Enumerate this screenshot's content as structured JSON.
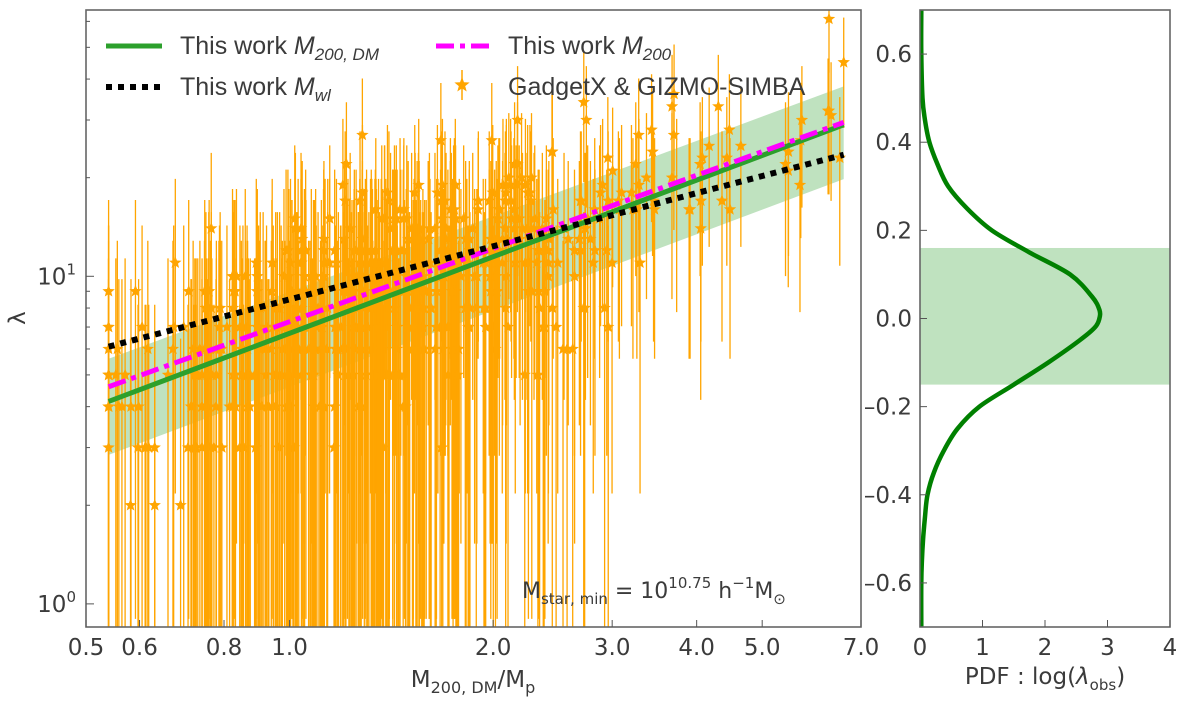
{
  "chart_data": [
    {
      "type": "scatter",
      "title": "",
      "xlabel": "M_200,DM / M_p",
      "xlabel_main": "M",
      "xlabel_sub": "200, DM",
      "xlabel_tail": "/M",
      "xlabel_tail_sub": "p",
      "ylabel": "λ",
      "xscale": "log",
      "yscale": "log",
      "xlim": [
        0.5,
        7.0
      ],
      "ylim": [
        0.85,
        65
      ],
      "x_ticks": [
        {
          "v": 0.5,
          "label": "0.5"
        },
        {
          "v": 0.6,
          "label": "0.6"
        },
        {
          "v": 0.8,
          "label": "0.8"
        },
        {
          "v": 1.0,
          "label": "1.0"
        },
        {
          "v": 2.0,
          "label": "2.0"
        },
        {
          "v": 3.0,
          "label": "3.0"
        },
        {
          "v": 4.0,
          "label": "4.0"
        },
        {
          "v": 5.0,
          "label": "5.0"
        },
        {
          "v": 7.0,
          "label": "7.0"
        }
      ],
      "y_ticks": [
        {
          "v": 1,
          "label": "10",
          "exp": "0"
        },
        {
          "v": 10,
          "label": "10",
          "exp": "1"
        }
      ],
      "annotation": {
        "prefix": "M",
        "prefix_sub": "star, min",
        "eq": " = 10",
        "exp": "10.75",
        "unit": " h",
        "unit_exp": "−1",
        "unit_tail": "M",
        "unit_tail_sub": "⊙"
      },
      "legend": [
        {
          "key": "fit_dm",
          "label": "This work ",
          "math": "M",
          "sub": "200, DM"
        },
        {
          "key": "fit_wl",
          "label": "This work ",
          "math": "M",
          "sub": "wl"
        },
        {
          "key": "fit_200",
          "label": "This work ",
          "math": "M",
          "sub": "200"
        },
        {
          "key": "sims",
          "label": "GadgetX & GIZMO-SIMBA"
        }
      ],
      "fits": {
        "fit_dm": {
          "x": [
            0.54,
            6.6
          ],
          "y": [
            4.15,
            29.0
          ],
          "color": "#2ca02c"
        },
        "fit_200": {
          "x": [
            0.54,
            6.6
          ],
          "y": [
            4.6,
            29.5
          ],
          "color": "#ff00ff"
        },
        "fit_wl": {
          "x": [
            0.54,
            6.6
          ],
          "y": [
            6.1,
            23.5
          ],
          "color": "#000000"
        },
        "band": {
          "x": [
            0.54,
            6.6
          ],
          "lo": [
            2.85,
            19.8
          ],
          "hi": [
            5.6,
            38.0
          ],
          "color": "#2ca02c"
        }
      },
      "scatter_color": "#ffa500",
      "n_points": 650,
      "seed": 42
    },
    {
      "type": "line",
      "title": "",
      "xlabel": "PDF",
      "xlabel_func": " : log(",
      "xlabel_var": "λ",
      "xlabel_sub": "obs",
      "xlabel_close": ")",
      "ylabel": "",
      "xlim": [
        0,
        4
      ],
      "ylim": [
        -0.7,
        0.7
      ],
      "x_ticks": [
        {
          "v": 0,
          "label": "0"
        },
        {
          "v": 1,
          "label": "1"
        },
        {
          "v": 2,
          "label": "2"
        },
        {
          "v": 3,
          "label": "3"
        },
        {
          "v": 4,
          "label": "4"
        }
      ],
      "y_ticks": [
        {
          "v": 0.6,
          "label": "0.6"
        },
        {
          "v": 0.4,
          "label": "0.4"
        },
        {
          "v": 0.2,
          "label": "0.2"
        },
        {
          "v": 0.0,
          "label": "0.0"
        },
        {
          "v": -0.2,
          "label": "–0.2"
        },
        {
          "v": -0.4,
          "label": "–0.4"
        },
        {
          "v": -0.6,
          "label": "–0.6"
        }
      ],
      "band": {
        "lo": -0.15,
        "hi": 0.16,
        "color": "#2ca02c"
      },
      "series": [
        {
          "name": "PDF",
          "color": "#008000",
          "y": [
            0.7,
            0.6,
            0.5,
            0.45,
            0.4,
            0.35,
            0.3,
            0.25,
            0.2,
            0.15,
            0.1,
            0.05,
            0.02,
            0.0,
            -0.02,
            -0.05,
            -0.1,
            -0.15,
            -0.2,
            -0.25,
            -0.3,
            -0.35,
            -0.4,
            -0.45,
            -0.5,
            -0.55,
            -0.6,
            -0.7
          ],
          "x": [
            0.02,
            0.02,
            0.04,
            0.08,
            0.15,
            0.28,
            0.45,
            0.75,
            1.15,
            1.75,
            2.4,
            2.75,
            2.87,
            2.87,
            2.8,
            2.55,
            2.05,
            1.5,
            0.95,
            0.6,
            0.38,
            0.22,
            0.12,
            0.08,
            0.05,
            0.03,
            0.02,
            0.02
          ]
        }
      ]
    }
  ]
}
